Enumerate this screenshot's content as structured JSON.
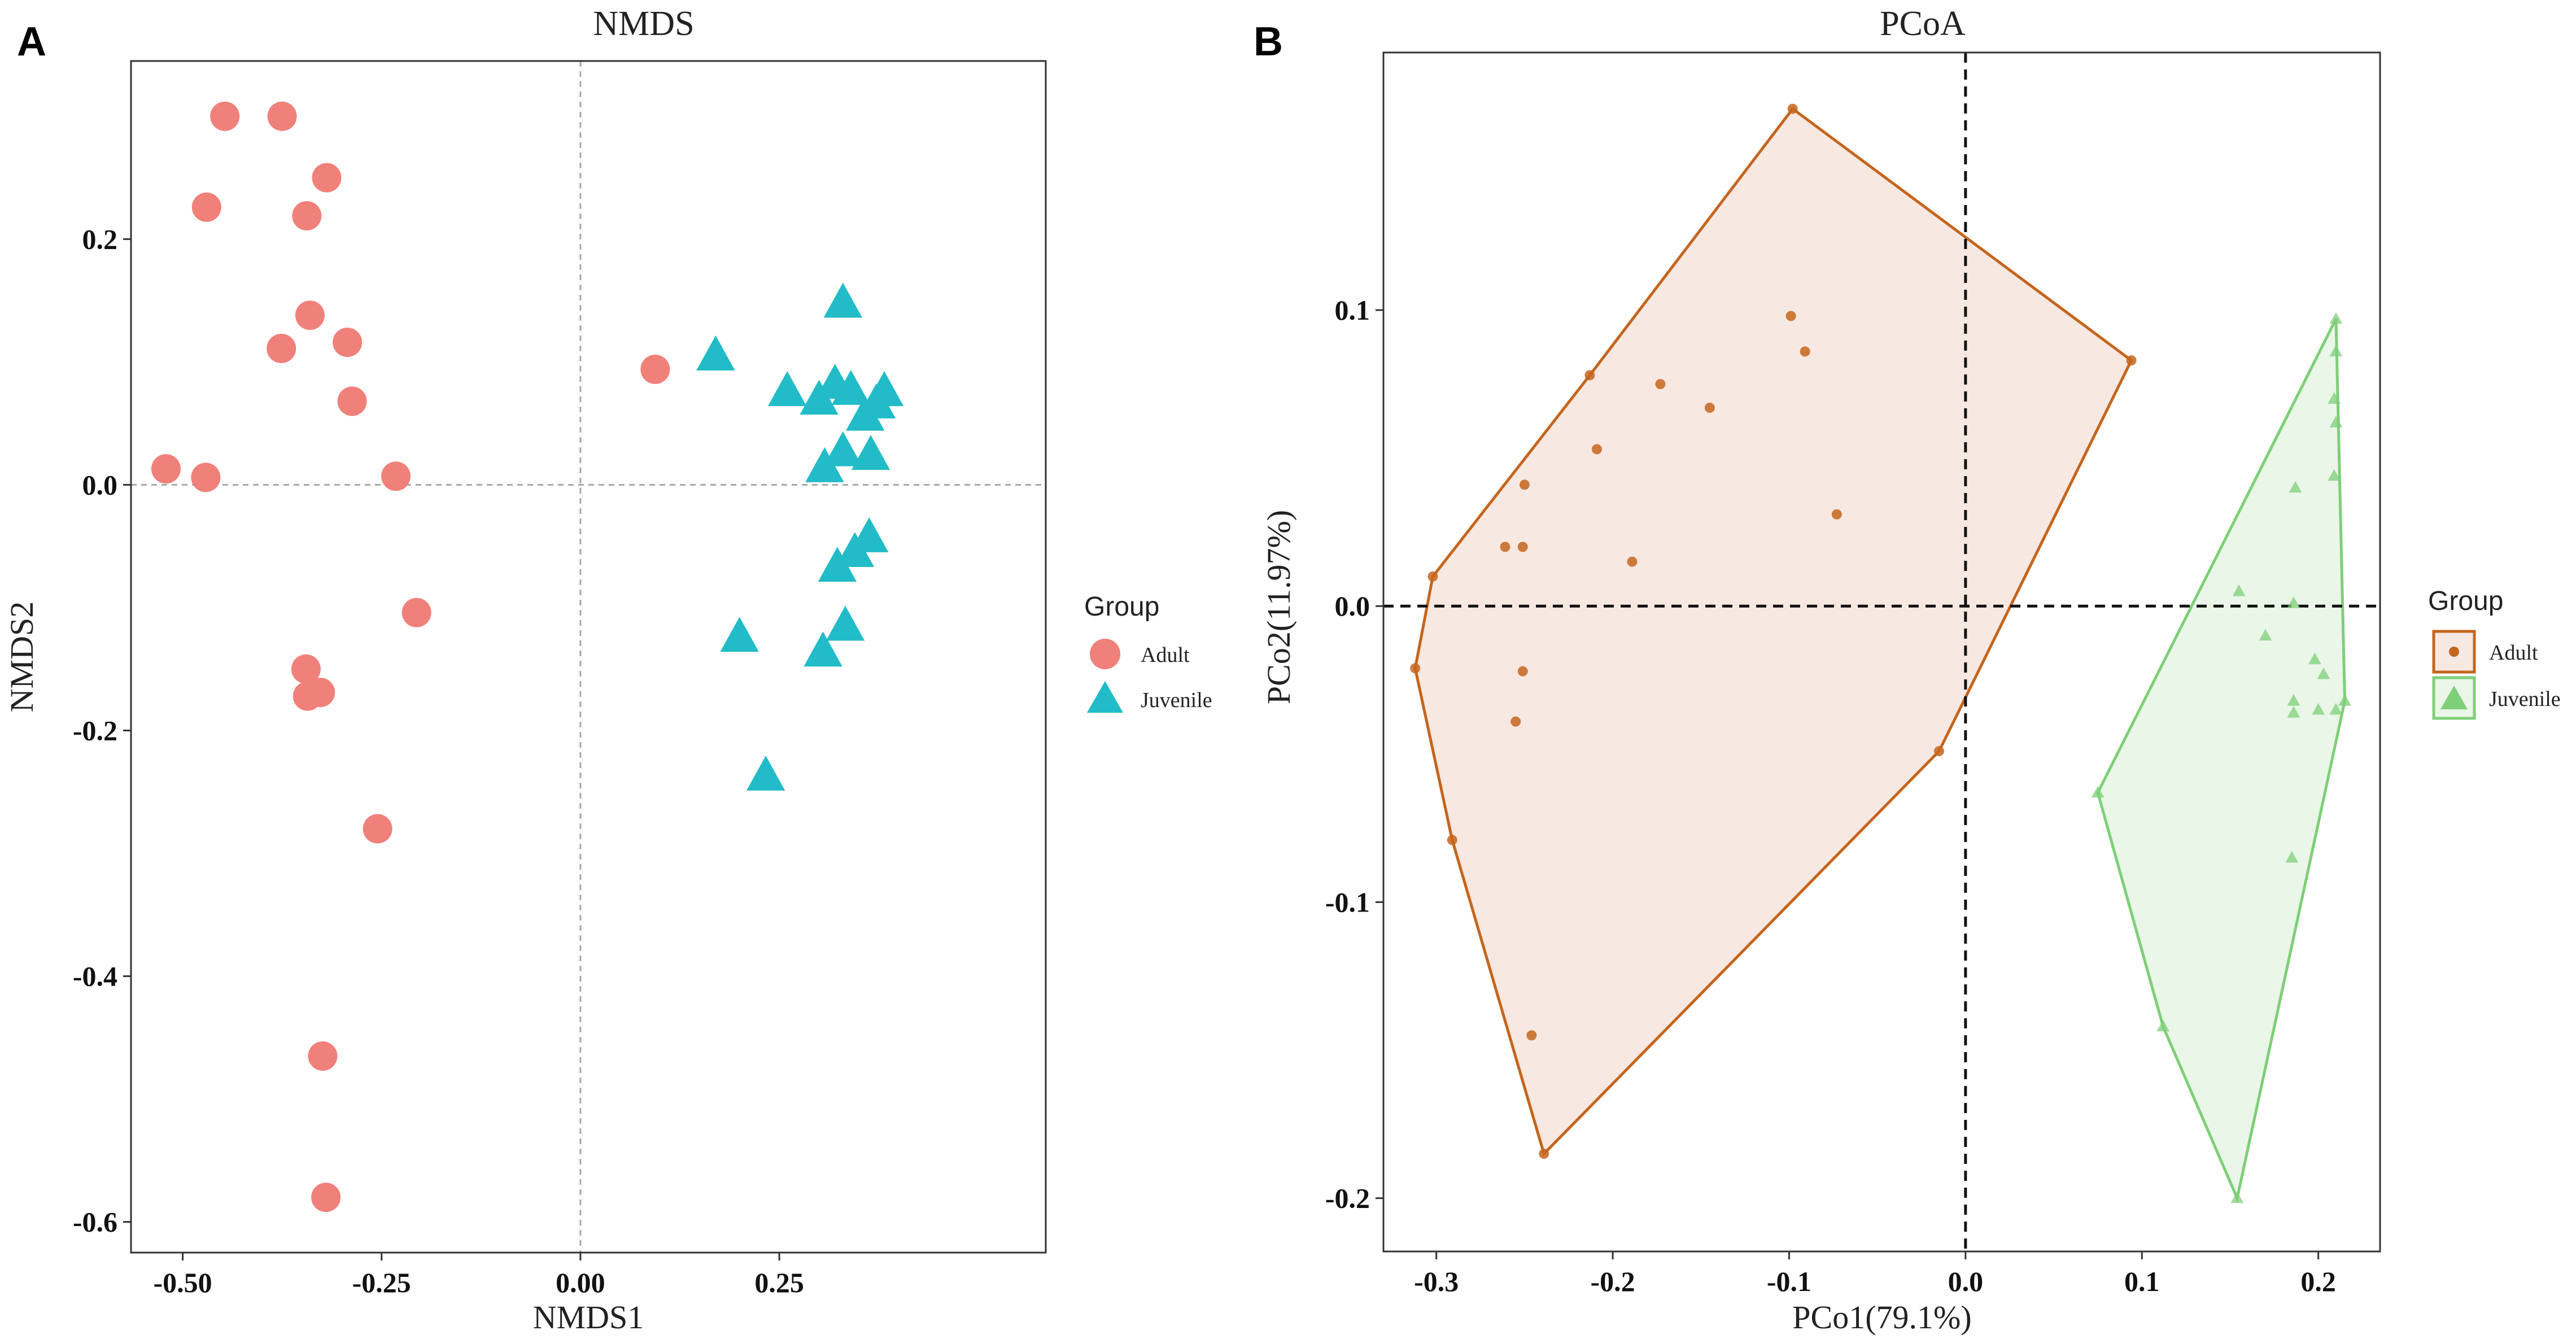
{
  "panels": [
    {
      "panel_label": "A",
      "legend_title": "Group",
      "legend_items": [
        "Adult",
        "Juvenile"
      ]
    },
    {
      "panel_label": "B",
      "legend_title": "Group",
      "legend_items": [
        "Adult",
        "Juvenile"
      ]
    }
  ],
  "colors": {
    "nmds_adult": "#F0807A",
    "nmds_juvenile": "#22BCC8",
    "pcoa_adult": "#C5651C",
    "pcoa_adult_fill": "#F7E8E2",
    "pcoa_juvenile": "#7ECF78",
    "pcoa_juvenile_fill": "#EAF6E8"
  },
  "chart_data": [
    {
      "type": "scatter",
      "title": "NMDS",
      "xlabel": "NMDS1",
      "ylabel": "NMDS2",
      "xlim": [
        -0.565,
        0.585
      ],
      "ylim": [
        -0.625,
        0.345
      ],
      "xticks": [
        -0.5,
        -0.25,
        0.0,
        0.25
      ],
      "xtick_labels": [
        "-0.50",
        "-0.25",
        "0.00",
        "0.25"
      ],
      "yticks": [
        0.2,
        0.0,
        -0.2,
        -0.4,
        -0.6
      ],
      "ytick_labels": [
        "0.2",
        "0.0",
        "-0.2",
        "-0.4",
        "-0.6"
      ],
      "reference_lines": {
        "x": 0,
        "y": 0
      },
      "series": [
        {
          "name": "Adult",
          "marker": "circle",
          "points": [
            [
              -0.447,
              0.3
            ],
            [
              -0.375,
              0.3
            ],
            [
              -0.319,
              0.25
            ],
            [
              -0.47,
              0.226
            ],
            [
              -0.344,
              0.219
            ],
            [
              -0.34,
              0.138
            ],
            [
              -0.376,
              0.111
            ],
            [
              -0.293,
              0.116
            ],
            [
              -0.287,
              0.068
            ],
            [
              0.094,
              0.094
            ],
            [
              -0.521,
              0.013
            ],
            [
              -0.471,
              0.006
            ],
            [
              -0.232,
              0.007
            ],
            [
              -0.206,
              -0.104
            ],
            [
              -0.345,
              -0.15
            ],
            [
              -0.343,
              -0.172
            ],
            [
              -0.327,
              -0.169
            ],
            [
              -0.255,
              -0.28
            ],
            [
              -0.324,
              -0.465
            ],
            [
              -0.32,
              -0.58
            ]
          ]
        },
        {
          "name": "Juvenile",
          "marker": "triangle",
          "points": [
            [
              0.33,
              0.148
            ],
            [
              0.17,
              0.105
            ],
            [
              0.26,
              0.076
            ],
            [
              0.3,
              0.069
            ],
            [
              0.32,
              0.082
            ],
            [
              0.34,
              0.077
            ],
            [
              0.372,
              0.066
            ],
            [
              0.382,
              0.076
            ],
            [
              0.358,
              0.056
            ],
            [
              0.33,
              0.027
            ],
            [
              0.307,
              0.014
            ],
            [
              0.365,
              0.024
            ],
            [
              0.363,
              -0.043
            ],
            [
              0.345,
              -0.055
            ],
            [
              0.323,
              -0.067
            ],
            [
              0.2,
              -0.124
            ],
            [
              0.333,
              -0.115
            ],
            [
              0.305,
              -0.136
            ],
            [
              0.233,
              -0.237
            ]
          ]
        }
      ]
    },
    {
      "type": "scatter",
      "title": "PCoA",
      "xlabel": "PCo1(79.1%)",
      "ylabel": "PCo2(11.97%)",
      "xlim": [
        -0.33,
        0.235
      ],
      "ylim": [
        -0.218,
        0.187
      ],
      "xticks": [
        -0.3,
        -0.2,
        -0.1,
        0.0,
        0.1,
        0.2
      ],
      "xtick_labels": [
        "-0.3",
        "-0.2",
        "-0.1",
        "0.0",
        "0.1",
        "0.2"
      ],
      "yticks": [
        0.1,
        0.0,
        -0.1,
        -0.2
      ],
      "ytick_labels": [
        "0.1",
        "0.0",
        "-0.1",
        "-0.2"
      ],
      "reference_lines": {
        "x": 0,
        "y": 0
      },
      "series": [
        {
          "name": "Adult",
          "marker": "circle",
          "hull": [
            [
              -0.098,
              0.168
            ],
            [
              0.094,
              0.083
            ],
            [
              -0.015,
              -0.049
            ],
            [
              -0.239,
              -0.185
            ],
            [
              -0.291,
              -0.079
            ],
            [
              -0.312,
              -0.021
            ],
            [
              -0.302,
              0.01
            ],
            [
              -0.213,
              0.078
            ]
          ],
          "points": [
            [
              -0.098,
              0.168
            ],
            [
              -0.099,
              0.098
            ],
            [
              -0.091,
              0.086
            ],
            [
              -0.213,
              0.078
            ],
            [
              -0.173,
              0.075
            ],
            [
              -0.145,
              0.067
            ],
            [
              -0.209,
              0.053
            ],
            [
              -0.25,
              0.041
            ],
            [
              -0.073,
              0.031
            ],
            [
              -0.261,
              0.02
            ],
            [
              -0.251,
              0.02
            ],
            [
              -0.189,
              0.015
            ],
            [
              -0.302,
              0.01
            ],
            [
              -0.312,
              -0.021
            ],
            [
              -0.251,
              -0.022
            ],
            [
              -0.255,
              -0.039
            ],
            [
              -0.015,
              -0.049
            ],
            [
              -0.291,
              -0.079
            ],
            [
              -0.246,
              -0.145
            ],
            [
              -0.239,
              -0.185
            ],
            [
              0.094,
              0.083
            ]
          ]
        },
        {
          "name": "Juvenile",
          "marker": "triangle",
          "hull": [
            [
              0.21,
              0.097
            ],
            [
              0.215,
              -0.032
            ],
            [
              0.154,
              -0.2
            ],
            [
              0.112,
              -0.142
            ],
            [
              0.075,
              -0.063
            ]
          ],
          "points": [
            [
              0.21,
              0.097
            ],
            [
              0.21,
              0.086
            ],
            [
              0.209,
              0.07
            ],
            [
              0.21,
              0.062
            ],
            [
              0.209,
              0.044
            ],
            [
              0.187,
              0.04
            ],
            [
              0.155,
              0.005
            ],
            [
              0.186,
              0.001
            ],
            [
              0.17,
              -0.01
            ],
            [
              0.198,
              -0.018
            ],
            [
              0.203,
              -0.023
            ],
            [
              0.186,
              -0.032
            ],
            [
              0.186,
              -0.036
            ],
            [
              0.2,
              -0.035
            ],
            [
              0.21,
              -0.035
            ],
            [
              0.215,
              -0.032
            ],
            [
              0.185,
              -0.085
            ],
            [
              0.075,
              -0.063
            ],
            [
              0.112,
              -0.142
            ],
            [
              0.154,
              -0.2
            ]
          ]
        }
      ]
    }
  ]
}
